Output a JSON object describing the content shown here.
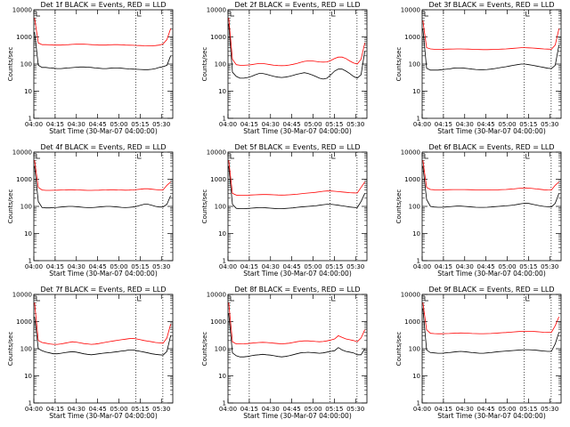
{
  "colors": {
    "events": "#000000",
    "lld": "#ff0000"
  },
  "shared": {
    "ylabel": "Counts/sec",
    "xlabel": "Start Time (30-Mar-07 04:00:00)",
    "x_tick_labels": [
      "04:00",
      "04:15",
      "04:30",
      "04:45",
      "05:00",
      "05:15",
      "05:30"
    ],
    "x_tick_minutes": [
      0,
      15,
      30,
      45,
      60,
      75,
      90
    ],
    "y_tick_labels": [
      "1",
      "10",
      "100",
      "1000",
      "10000"
    ],
    "y_tick_values": [
      1,
      10,
      100,
      1000,
      10000
    ],
    "xlim_minutes": [
      0,
      98
    ],
    "ylim": [
      1,
      10000
    ],
    "y_scale": "log"
  },
  "chart_data": [
    {
      "type": "line",
      "title": "Det 1f BLACK = Events, RED = LLD",
      "series": [
        {
          "color": "#000000",
          "values": [
            1500,
            90,
            75,
            75,
            72,
            70,
            68,
            68,
            70,
            72,
            74,
            76,
            78,
            78,
            77,
            75,
            72,
            70,
            68,
            68,
            70,
            72,
            72,
            70,
            68,
            66,
            65,
            64,
            63,
            62,
            62,
            64,
            68,
            75,
            80,
            90,
            200
          ]
        },
        {
          "color": "#ff0000",
          "values": [
            5000,
            600,
            520,
            520,
            510,
            500,
            500,
            500,
            510,
            520,
            530,
            540,
            540,
            540,
            530,
            520,
            510,
            500,
            500,
            500,
            510,
            520,
            520,
            510,
            500,
            495,
            490,
            485,
            480,
            475,
            470,
            470,
            480,
            500,
            550,
            800,
            2000
          ]
        }
      ]
    },
    {
      "type": "line",
      "title": "Det 2f BLACK = Events, RED = LLD",
      "series": [
        {
          "color": "#000000",
          "values": [
            3000,
            50,
            35,
            30,
            30,
            32,
            35,
            40,
            45,
            45,
            42,
            38,
            35,
            33,
            32,
            33,
            35,
            38,
            42,
            45,
            48,
            45,
            40,
            35,
            30,
            28,
            30,
            40,
            55,
            65,
            65,
            55,
            45,
            35,
            30,
            40,
            300
          ]
        },
        {
          "color": "#ff0000",
          "values": [
            5000,
            150,
            95,
            90,
            90,
            92,
            95,
            100,
            105,
            105,
            100,
            95,
            90,
            88,
            87,
            88,
            92,
            98,
            105,
            115,
            125,
            130,
            130,
            125,
            120,
            118,
            120,
            135,
            160,
            180,
            180,
            160,
            130,
            110,
            100,
            150,
            600
          ]
        }
      ]
    },
    {
      "type": "line",
      "title": "Det 3f BLACK = Events, RED = LLD",
      "series": [
        {
          "color": "#000000",
          "values": [
            2000,
            70,
            60,
            60,
            60,
            62,
            64,
            66,
            70,
            72,
            72,
            70,
            68,
            65,
            63,
            62,
            62,
            63,
            65,
            68,
            72,
            76,
            80,
            85,
            90,
            95,
            100,
            100,
            95,
            90,
            85,
            80,
            75,
            70,
            68,
            90,
            500
          ]
        },
        {
          "color": "#ff0000",
          "values": [
            4000,
            400,
            360,
            350,
            350,
            350,
            352,
            355,
            358,
            360,
            360,
            358,
            355,
            350,
            345,
            342,
            340,
            340,
            342,
            345,
            350,
            355,
            360,
            370,
            380,
            390,
            400,
            400,
            395,
            390,
            380,
            370,
            360,
            355,
            350,
            500,
            2000
          ]
        }
      ]
    },
    {
      "type": "line",
      "title": "Det 4f BLACK = Events, RED = LLD",
      "series": [
        {
          "color": "#000000",
          "values": [
            3000,
            150,
            90,
            88,
            88,
            90,
            92,
            95,
            98,
            100,
            100,
            98,
            95,
            92,
            90,
            90,
            92,
            95,
            98,
            100,
            100,
            98,
            95,
            92,
            90,
            92,
            95,
            100,
            110,
            120,
            120,
            110,
            100,
            95,
            95,
            120,
            250
          ]
        },
        {
          "color": "#ff0000",
          "values": [
            5000,
            500,
            400,
            390,
            390,
            392,
            395,
            400,
            405,
            410,
            410,
            405,
            400,
            395,
            390,
            390,
            392,
            395,
            400,
            405,
            410,
            410,
            405,
            400,
            395,
            398,
            405,
            415,
            430,
            445,
            445,
            430,
            415,
            405,
            405,
            600,
            800
          ]
        }
      ]
    },
    {
      "type": "line",
      "title": "Det 5f BLACK = Events, RED = LLD",
      "series": [
        {
          "color": "#000000",
          "values": [
            3000,
            120,
            85,
            82,
            82,
            84,
            86,
            88,
            90,
            90,
            88,
            86,
            84,
            82,
            82,
            84,
            86,
            88,
            92,
            95,
            98,
            100,
            102,
            105,
            110,
            115,
            120,
            120,
            115,
            110,
            105,
            100,
            95,
            92,
            90,
            150,
            300
          ]
        },
        {
          "color": "#ff0000",
          "values": [
            5000,
            300,
            260,
            255,
            255,
            258,
            262,
            266,
            270,
            272,
            272,
            270,
            266,
            262,
            260,
            262,
            266,
            272,
            280,
            290,
            300,
            310,
            320,
            330,
            345,
            360,
            370,
            370,
            360,
            350,
            340,
            330,
            320,
            315,
            310,
            500,
            800
          ]
        }
      ]
    },
    {
      "type": "line",
      "title": "Det 6f BLACK = Events, RED = LLD",
      "series": [
        {
          "color": "#000000",
          "values": [
            3000,
            180,
            100,
            95,
            93,
            93,
            95,
            97,
            100,
            102,
            102,
            100,
            98,
            95,
            93,
            92,
            92,
            93,
            95,
            98,
            100,
            102,
            105,
            108,
            112,
            118,
            125,
            130,
            128,
            120,
            112,
            105,
            100,
            97,
            95,
            130,
            300
          ]
        },
        {
          "color": "#ff0000",
          "values": [
            5000,
            500,
            420,
            410,
            408,
            408,
            410,
            412,
            415,
            418,
            418,
            415,
            412,
            410,
            408,
            406,
            405,
            405,
            406,
            408,
            410,
            415,
            420,
            430,
            440,
            455,
            470,
            480,
            470,
            455,
            440,
            425,
            410,
            405,
            400,
            600,
            800
          ]
        }
      ]
    },
    {
      "type": "line",
      "title": "Det 7f BLACK = Events, RED = LLD",
      "series": [
        {
          "color": "#000000",
          "values": [
            1500,
            100,
            85,
            75,
            70,
            65,
            65,
            68,
            72,
            75,
            78,
            75,
            70,
            65,
            62,
            60,
            62,
            65,
            68,
            70,
            72,
            75,
            78,
            82,
            85,
            90,
            90,
            85,
            80,
            75,
            70,
            65,
            62,
            60,
            58,
            80,
            300
          ]
        },
        {
          "color": "#ff0000",
          "values": [
            5000,
            200,
            170,
            160,
            150,
            145,
            145,
            150,
            160,
            170,
            180,
            175,
            165,
            155,
            150,
            145,
            148,
            155,
            165,
            175,
            185,
            195,
            205,
            215,
            225,
            235,
            240,
            230,
            215,
            200,
            190,
            180,
            170,
            165,
            160,
            250,
            800
          ]
        }
      ]
    },
    {
      "type": "line",
      "title": "Det 8f BLACK = Events, RED = LLD",
      "series": [
        {
          "color": "#000000",
          "values": [
            2000,
            70,
            55,
            50,
            50,
            52,
            55,
            58,
            60,
            62,
            60,
            58,
            55,
            52,
            50,
            52,
            55,
            60,
            65,
            70,
            72,
            74,
            72,
            70,
            68,
            70,
            75,
            80,
            85,
            110,
            90,
            80,
            75,
            70,
            60,
            60,
            100
          ]
        },
        {
          "color": "#ff0000",
          "values": [
            5000,
            180,
            150,
            150,
            152,
            155,
            160,
            165,
            170,
            172,
            170,
            165,
            160,
            155,
            152,
            155,
            160,
            170,
            180,
            190,
            195,
            195,
            190,
            185,
            180,
            185,
            195,
            210,
            230,
            300,
            260,
            230,
            215,
            200,
            180,
            250,
            500
          ]
        }
      ]
    },
    {
      "type": "line",
      "title": "Det 9f BLACK = Events, RED = LLD",
      "series": [
        {
          "color": "#000000",
          "values": [
            3000,
            90,
            72,
            70,
            68,
            68,
            70,
            72,
            75,
            78,
            80,
            78,
            75,
            72,
            70,
            68,
            68,
            70,
            72,
            75,
            78,
            80,
            82,
            84,
            86,
            88,
            90,
            92,
            92,
            90,
            88,
            85,
            82,
            80,
            80,
            150,
            400
          ]
        },
        {
          "color": "#ff0000",
          "values": [
            5000,
            500,
            370,
            360,
            355,
            355,
            360,
            365,
            370,
            375,
            380,
            378,
            372,
            365,
            360,
            358,
            358,
            360,
            365,
            372,
            380,
            388,
            395,
            405,
            415,
            425,
            435,
            440,
            440,
            435,
            425,
            415,
            405,
            400,
            400,
            700,
            1500
          ]
        }
      ]
    }
  ]
}
